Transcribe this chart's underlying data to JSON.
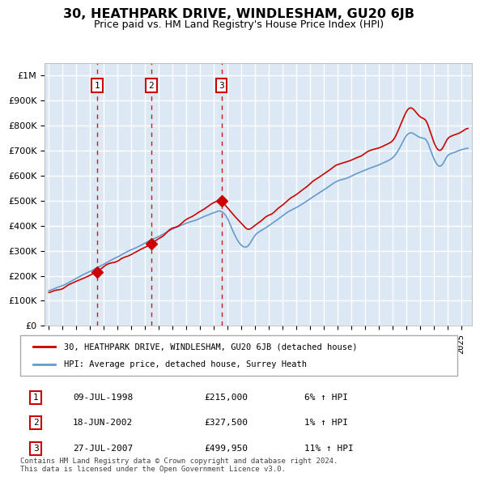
{
  "title": "30, HEATHPARK DRIVE, WINDLESHAM, GU20 6JB",
  "subtitle": "Price paid vs. HM Land Registry's House Price Index (HPI)",
  "hpi_label": "HPI: Average price, detached house, Surrey Heath",
  "property_label": "30, HEATHPARK DRIVE, WINDLESHAM, GU20 6JB (detached house)",
  "transactions": [
    {
      "num": 1,
      "date": "09-JUL-1998",
      "price": 215000,
      "pct": "6%",
      "direction": "↑",
      "year": 1998.52
    },
    {
      "num": 2,
      "date": "18-JUN-2002",
      "price": 327500,
      "pct": "1%",
      "direction": "↑",
      "year": 2002.46
    },
    {
      "num": 3,
      "date": "27-JUL-2007",
      "price": 499950,
      "pct": "11%",
      "direction": "↑",
      "year": 2007.57
    }
  ],
  "background_color": "#dce9f5",
  "plot_bg_color": "#dce9f5",
  "grid_color": "#ffffff",
  "red_line_color": "#cc0000",
  "blue_line_color": "#6699cc",
  "dashed_line_color": "#cc0000",
  "marker_color": "#cc0000",
  "footer_text": "Contains HM Land Registry data © Crown copyright and database right 2024.\nThis data is licensed under the Open Government Licence v3.0.",
  "ylim": [
    0,
    1050000
  ],
  "yticks": [
    0,
    100000,
    200000,
    300000,
    400000,
    500000,
    600000,
    700000,
    800000,
    900000,
    1000000
  ],
  "start_year": 1995,
  "end_year": 2025
}
